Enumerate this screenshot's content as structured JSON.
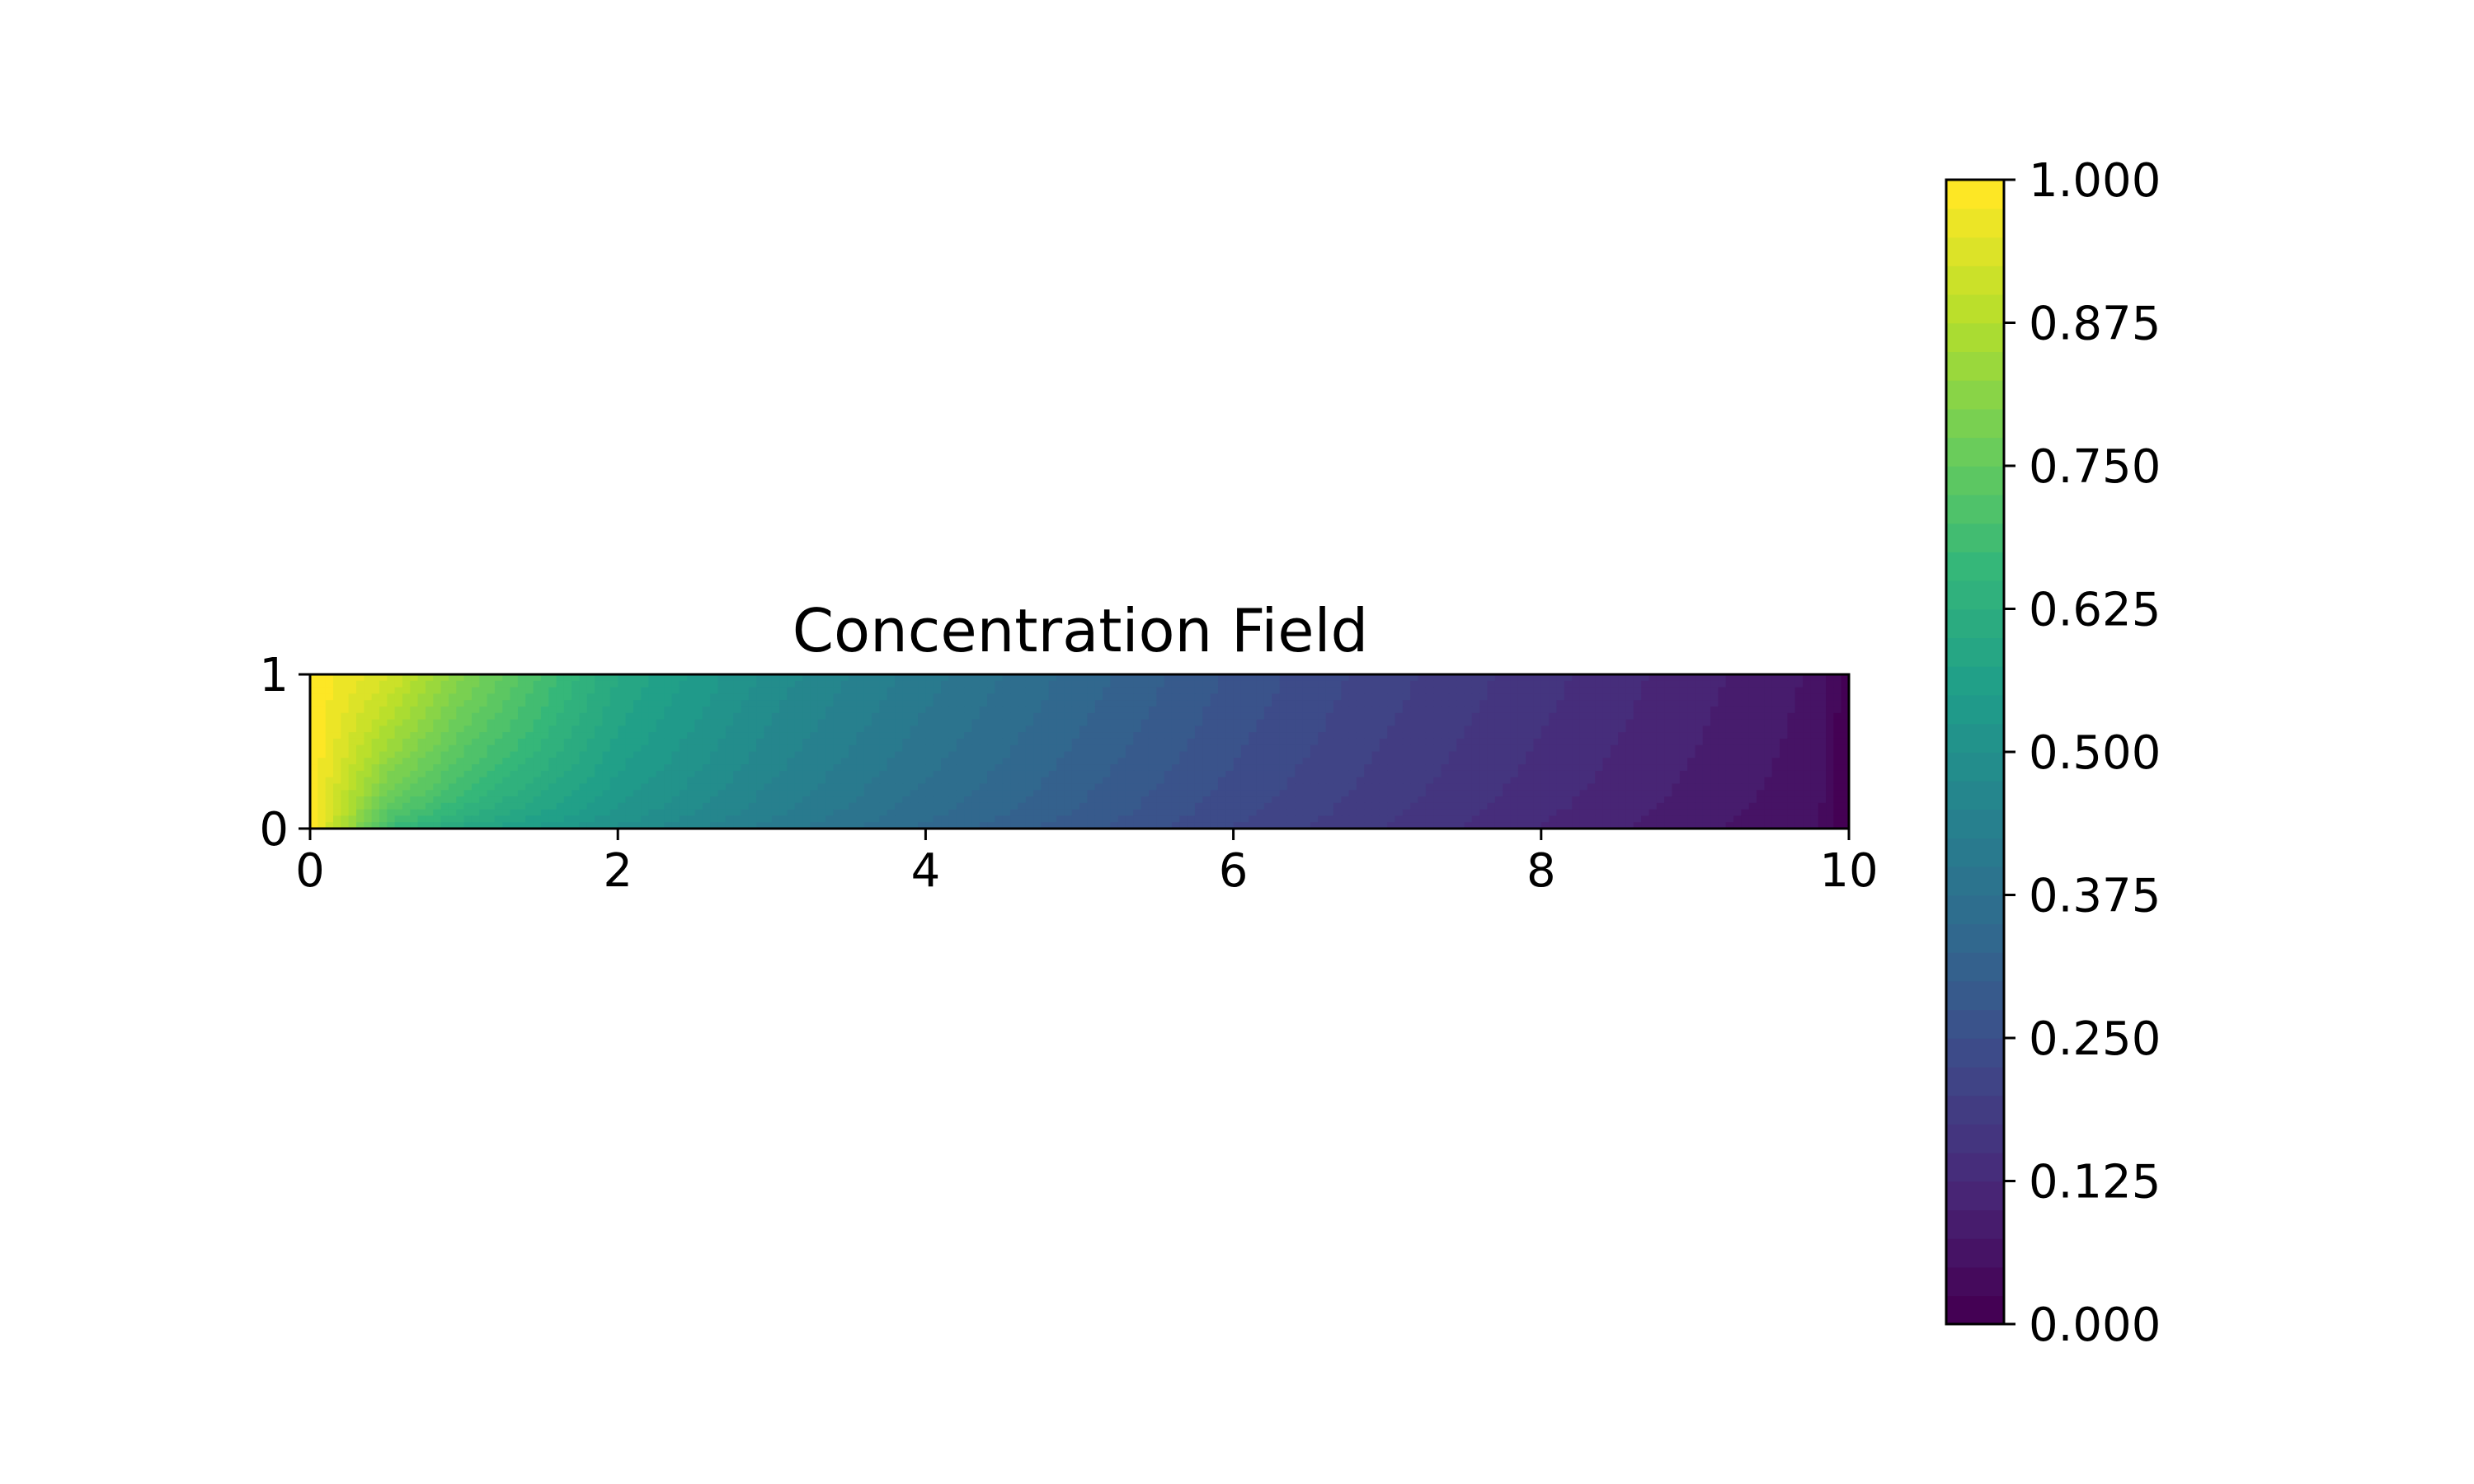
{
  "chart_data": {
    "type": "heatmap",
    "subtype": "filled-contour",
    "title": "Concentration Field",
    "xlabel": "",
    "ylabel": "",
    "xlim": [
      0,
      10
    ],
    "ylim": [
      0,
      1
    ],
    "x_ticks": [
      "0",
      "2",
      "4",
      "6",
      "8",
      "10"
    ],
    "y_ticks": [
      "0",
      "1"
    ],
    "grid": false,
    "colormap": "viridis",
    "levels": 40,
    "field_description": "concentration decays from 1.0 at x=0 to 0.0 at x=10; values near bottom boundary lower than top",
    "samples_x": [
      0,
      0.5,
      1,
      2,
      3,
      4,
      5,
      6,
      7,
      8,
      9,
      9.8,
      10
    ],
    "samples_top_row_y1": [
      1.0,
      0.93,
      0.8,
      0.6,
      0.49,
      0.41,
      0.34,
      0.27,
      0.21,
      0.16,
      0.11,
      0.07,
      0.0
    ],
    "samples_bottom_row_y0": [
      1.0,
      0.66,
      0.58,
      0.49,
      0.41,
      0.34,
      0.28,
      0.22,
      0.17,
      0.12,
      0.08,
      0.05,
      0.0
    ],
    "colorbar": {
      "range": [
        0,
        1
      ],
      "tick_labels": [
        "0.000",
        "0.125",
        "0.250",
        "0.375",
        "0.500",
        "0.625",
        "0.750",
        "0.875",
        "1.000"
      ],
      "placement": "right"
    },
    "colors": {
      "c0": "#440154",
      "c1": "#482878",
      "c2": "#3e4989",
      "c3": "#31688e",
      "c4": "#26828e",
      "c5": "#1f9e89",
      "c6": "#35b779",
      "c7": "#6ece58",
      "c8": "#b5de2b",
      "c9": "#fde725"
    }
  }
}
